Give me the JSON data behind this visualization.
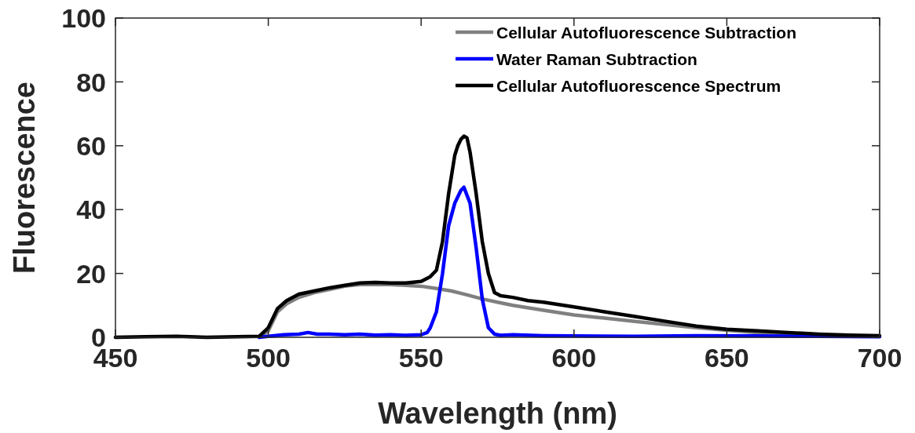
{
  "chart_data": {
    "type": "line",
    "xlabel": "Wavelength (nm)",
    "ylabel": "Fluorescence",
    "xlim": [
      450,
      700
    ],
    "ylim": [
      0,
      100
    ],
    "xticks": [
      450,
      500,
      550,
      600,
      650,
      700
    ],
    "yticks": [
      0,
      20,
      40,
      60,
      80,
      100
    ],
    "grid": false,
    "legend": "top right",
    "line_style": "solid",
    "marker": "none",
    "series": [
      {
        "name": "Cellular Autofluorescence Subtraction",
        "color": "#808080",
        "x": [
          497,
          500,
          503,
          506,
          510,
          515,
          520,
          525,
          530,
          535,
          540,
          545,
          550,
          555,
          560,
          565,
          570,
          575,
          580,
          590,
          600,
          610,
          620,
          630,
          640,
          650,
          660,
          670,
          680
        ],
        "values": [
          0,
          2,
          8,
          10.5,
          12.5,
          14,
          15,
          16,
          16.5,
          16.5,
          16.5,
          16.3,
          16,
          15.3,
          14.5,
          13.3,
          12,
          11,
          10,
          8.5,
          7,
          6,
          5,
          4,
          3,
          2.2,
          1.5,
          1,
          0.5
        ]
      },
      {
        "name": "Water Raman Subtraction",
        "color": "#0000ff",
        "x": [
          497,
          500,
          505,
          510,
          513,
          516,
          520,
          525,
          530,
          535,
          540,
          545,
          550,
          552,
          553,
          555,
          557,
          559,
          561,
          563,
          564,
          566,
          568,
          570,
          572,
          574,
          576,
          580,
          590,
          600,
          620,
          640,
          660,
          680,
          700
        ],
        "values": [
          0,
          0.3,
          0.8,
          1,
          1.5,
          1,
          1,
          0.8,
          1,
          0.7,
          0.8,
          0.6,
          0.8,
          1.5,
          3,
          8,
          20,
          35,
          42,
          46,
          47,
          42,
          28,
          12,
          3,
          1,
          0.6,
          0.8,
          0.5,
          0.4,
          0.3,
          0.5,
          0.4,
          0.3,
          0.2
        ]
      },
      {
        "name": "Cellular Autofluorescence Spectrum",
        "color": "#000000",
        "x": [
          450,
          460,
          470,
          480,
          490,
          497,
          500,
          503,
          506,
          510,
          515,
          520,
          525,
          530,
          535,
          540,
          545,
          550,
          553,
          555,
          557,
          559,
          561,
          562,
          563,
          564,
          565,
          566,
          568,
          570,
          572,
          574,
          576,
          580,
          585,
          590,
          600,
          610,
          620,
          630,
          640,
          650,
          660,
          670,
          680,
          690,
          700
        ],
        "values": [
          0,
          0.2,
          0.3,
          0,
          0.2,
          0.3,
          3,
          9,
          11.5,
          13.5,
          14.5,
          15.5,
          16.3,
          17,
          17.2,
          17,
          17,
          17.5,
          19,
          21,
          30,
          45,
          57,
          60,
          62,
          63,
          62.5,
          58,
          45,
          30,
          20,
          14,
          13,
          12.5,
          11.5,
          11,
          9.5,
          8,
          6.5,
          5,
          3.5,
          2.5,
          2,
          1.5,
          1,
          0.7,
          0.5
        ]
      }
    ]
  }
}
